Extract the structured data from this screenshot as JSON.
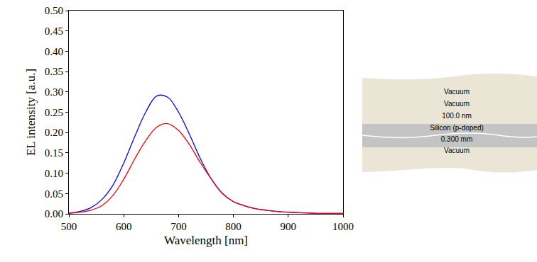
{
  "chart_data": {
    "type": "line",
    "x_label": "Wavelength [nm]",
    "y_label": "EL intensity [a.u.]",
    "x": [
      500,
      520,
      540,
      560,
      580,
      600,
      620,
      640,
      660,
      680,
      700,
      720,
      740,
      760,
      780,
      800,
      820,
      840,
      860,
      880,
      900,
      920,
      940,
      960,
      980,
      1000
    ],
    "series": [
      {
        "color": "#0000ff",
        "values": [
          0.002,
          0.006,
          0.015,
          0.035,
          0.07,
          0.125,
          0.19,
          0.25,
          0.29,
          0.287,
          0.25,
          0.195,
          0.135,
          0.085,
          0.05,
          0.03,
          0.02,
          0.013,
          0.009,
          0.006,
          0.004,
          0.003,
          0.002,
          0.001,
          0.001,
          0.001
        ]
      },
      {
        "color": "#ff0000",
        "values": [
          0.001,
          0.004,
          0.009,
          0.02,
          0.045,
          0.085,
          0.135,
          0.18,
          0.213,
          0.222,
          0.205,
          0.17,
          0.125,
          0.085,
          0.05,
          0.03,
          0.02,
          0.013,
          0.009,
          0.006,
          0.004,
          0.003,
          0.002,
          0.001,
          0.001,
          0.001
        ]
      }
    ],
    "xlim": [
      500,
      1000
    ],
    "xticks": [
      500,
      600,
      700,
      800,
      900,
      1000
    ],
    "ylim": [
      0,
      0.5
    ],
    "yticks": [
      {
        "value": 0,
        "label": "0.00"
      },
      {
        "value": 0.05,
        "label": "0.05"
      },
      {
        "value": 0.1,
        "label": "0.10"
      },
      {
        "value": 0.15,
        "label": "0.15"
      },
      {
        "value": 0.2,
        "label": "0.20"
      },
      {
        "value": 0.25,
        "label": "0.25"
      },
      {
        "value": 0.3,
        "label": "0.30"
      },
      {
        "value": 0.35,
        "label": "0.35"
      },
      {
        "value": 0.4,
        "label": "0.40"
      },
      {
        "value": 0.45,
        "label": "0.45"
      },
      {
        "value": 0.5,
        "label": "0.50"
      }
    ],
    "grid": false
  },
  "diagram": {
    "layers": [
      "Vacuum",
      "Vacuum",
      "100.0 nm",
      "Silicon (p-doped)",
      "0.300 mm",
      "Vacuum"
    ]
  }
}
